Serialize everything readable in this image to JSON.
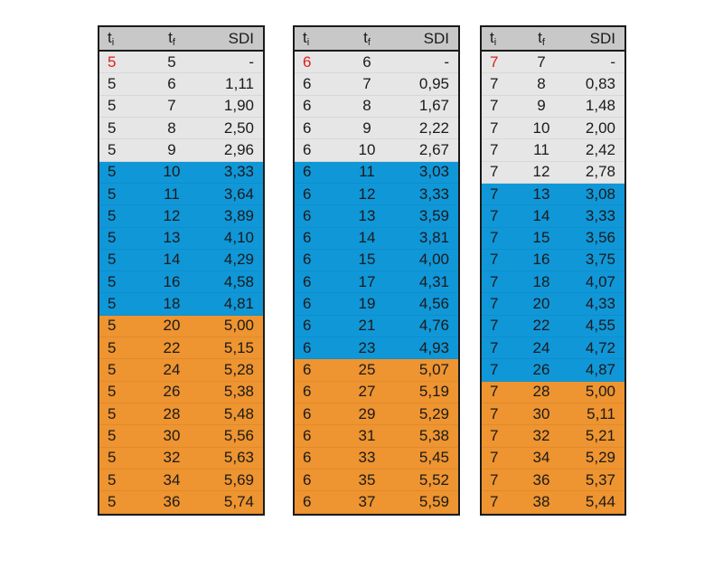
{
  "colors": {
    "header": "#c8c8c8",
    "grey": "#e6e6e6",
    "blue": "#1097d8",
    "orange": "#ee9430",
    "highlight_text": "#d8221c"
  },
  "header": {
    "ti_base": "t",
    "ti_sub": "i",
    "tf_base": "t",
    "tf_sub": "f",
    "sdi": "SDI"
  },
  "tables": [
    {
      "rows": [
        {
          "ti": "5",
          "tf": "5",
          "sdi": "-",
          "band": "grey",
          "red": true
        },
        {
          "ti": "5",
          "tf": "6",
          "sdi": "1,11",
          "band": "grey"
        },
        {
          "ti": "5",
          "tf": "7",
          "sdi": "1,90",
          "band": "grey"
        },
        {
          "ti": "5",
          "tf": "8",
          "sdi": "2,50",
          "band": "grey"
        },
        {
          "ti": "5",
          "tf": "9",
          "sdi": "2,96",
          "band": "grey"
        },
        {
          "ti": "5",
          "tf": "10",
          "sdi": "3,33",
          "band": "blue"
        },
        {
          "ti": "5",
          "tf": "11",
          "sdi": "3,64",
          "band": "blue"
        },
        {
          "ti": "5",
          "tf": "12",
          "sdi": "3,89",
          "band": "blue"
        },
        {
          "ti": "5",
          "tf": "13",
          "sdi": "4,10",
          "band": "blue"
        },
        {
          "ti": "5",
          "tf": "14",
          "sdi": "4,29",
          "band": "blue"
        },
        {
          "ti": "5",
          "tf": "16",
          "sdi": "4,58",
          "band": "blue"
        },
        {
          "ti": "5",
          "tf": "18",
          "sdi": "4,81",
          "band": "blue"
        },
        {
          "ti": "5",
          "tf": "20",
          "sdi": "5,00",
          "band": "orange"
        },
        {
          "ti": "5",
          "tf": "22",
          "sdi": "5,15",
          "band": "orange"
        },
        {
          "ti": "5",
          "tf": "24",
          "sdi": "5,28",
          "band": "orange"
        },
        {
          "ti": "5",
          "tf": "26",
          "sdi": "5,38",
          "band": "orange"
        },
        {
          "ti": "5",
          "tf": "28",
          "sdi": "5,48",
          "band": "orange"
        },
        {
          "ti": "5",
          "tf": "30",
          "sdi": "5,56",
          "band": "orange"
        },
        {
          "ti": "5",
          "tf": "32",
          "sdi": "5,63",
          "band": "orange"
        },
        {
          "ti": "5",
          "tf": "34",
          "sdi": "5,69",
          "band": "orange"
        },
        {
          "ti": "5",
          "tf": "36",
          "sdi": "5,74",
          "band": "orange"
        }
      ]
    },
    {
      "rows": [
        {
          "ti": "6",
          "tf": "6",
          "sdi": "-",
          "band": "grey",
          "red": true
        },
        {
          "ti": "6",
          "tf": "7",
          "sdi": "0,95",
          "band": "grey"
        },
        {
          "ti": "6",
          "tf": "8",
          "sdi": "1,67",
          "band": "grey"
        },
        {
          "ti": "6",
          "tf": "9",
          "sdi": "2,22",
          "band": "grey"
        },
        {
          "ti": "6",
          "tf": "10",
          "sdi": "2,67",
          "band": "grey"
        },
        {
          "ti": "6",
          "tf": "11",
          "sdi": "3,03",
          "band": "blue"
        },
        {
          "ti": "6",
          "tf": "12",
          "sdi": "3,33",
          "band": "blue"
        },
        {
          "ti": "6",
          "tf": "13",
          "sdi": "3,59",
          "band": "blue"
        },
        {
          "ti": "6",
          "tf": "14",
          "sdi": "3,81",
          "band": "blue"
        },
        {
          "ti": "6",
          "tf": "15",
          "sdi": "4,00",
          "band": "blue"
        },
        {
          "ti": "6",
          "tf": "17",
          "sdi": "4,31",
          "band": "blue"
        },
        {
          "ti": "6",
          "tf": "19",
          "sdi": "4,56",
          "band": "blue"
        },
        {
          "ti": "6",
          "tf": "21",
          "sdi": "4,76",
          "band": "blue"
        },
        {
          "ti": "6",
          "tf": "23",
          "sdi": "4,93",
          "band": "blue"
        },
        {
          "ti": "6",
          "tf": "25",
          "sdi": "5,07",
          "band": "orange"
        },
        {
          "ti": "6",
          "tf": "27",
          "sdi": "5,19",
          "band": "orange"
        },
        {
          "ti": "6",
          "tf": "29",
          "sdi": "5,29",
          "band": "orange"
        },
        {
          "ti": "6",
          "tf": "31",
          "sdi": "5,38",
          "band": "orange"
        },
        {
          "ti": "6",
          "tf": "33",
          "sdi": "5,45",
          "band": "orange"
        },
        {
          "ti": "6",
          "tf": "35",
          "sdi": "5,52",
          "band": "orange"
        },
        {
          "ti": "6",
          "tf": "37",
          "sdi": "5,59",
          "band": "orange"
        }
      ]
    },
    {
      "rows": [
        {
          "ti": "7",
          "tf": "7",
          "sdi": "-",
          "band": "grey",
          "red": true
        },
        {
          "ti": "7",
          "tf": "8",
          "sdi": "0,83",
          "band": "grey"
        },
        {
          "ti": "7",
          "tf": "9",
          "sdi": "1,48",
          "band": "grey"
        },
        {
          "ti": "7",
          "tf": "10",
          "sdi": "2,00",
          "band": "grey"
        },
        {
          "ti": "7",
          "tf": "11",
          "sdi": "2,42",
          "band": "grey"
        },
        {
          "ti": "7",
          "tf": "12",
          "sdi": "2,78",
          "band": "grey"
        },
        {
          "ti": "7",
          "tf": "13",
          "sdi": "3,08",
          "band": "blue"
        },
        {
          "ti": "7",
          "tf": "14",
          "sdi": "3,33",
          "band": "blue"
        },
        {
          "ti": "7",
          "tf": "15",
          "sdi": "3,56",
          "band": "blue"
        },
        {
          "ti": "7",
          "tf": "16",
          "sdi": "3,75",
          "band": "blue"
        },
        {
          "ti": "7",
          "tf": "18",
          "sdi": "4,07",
          "band": "blue"
        },
        {
          "ti": "7",
          "tf": "20",
          "sdi": "4,33",
          "band": "blue"
        },
        {
          "ti": "7",
          "tf": "22",
          "sdi": "4,55",
          "band": "blue"
        },
        {
          "ti": "7",
          "tf": "24",
          "sdi": "4,72",
          "band": "blue"
        },
        {
          "ti": "7",
          "tf": "26",
          "sdi": "4,87",
          "band": "blue"
        },
        {
          "ti": "7",
          "tf": "28",
          "sdi": "5,00",
          "band": "orange"
        },
        {
          "ti": "7",
          "tf": "30",
          "sdi": "5,11",
          "band": "orange"
        },
        {
          "ti": "7",
          "tf": "32",
          "sdi": "5,21",
          "band": "orange"
        },
        {
          "ti": "7",
          "tf": "34",
          "sdi": "5,29",
          "band": "orange"
        },
        {
          "ti": "7",
          "tf": "36",
          "sdi": "5,37",
          "band": "orange"
        },
        {
          "ti": "7",
          "tf": "38",
          "sdi": "5,44",
          "band": "orange"
        }
      ]
    }
  ]
}
